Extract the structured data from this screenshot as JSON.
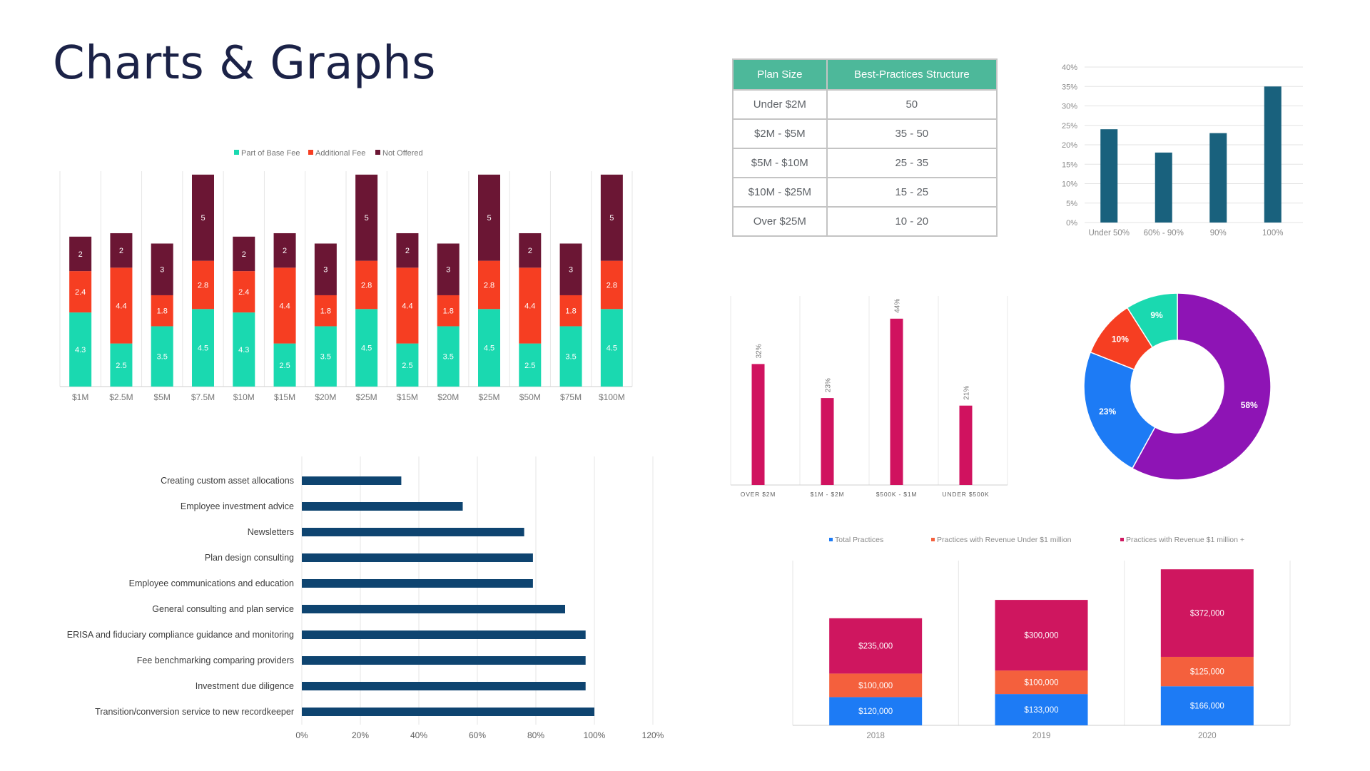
{
  "page": {
    "title": "Charts & Graphs"
  },
  "colors": {
    "title": "#1b2247",
    "base_fee": "#1ad9b0",
    "additional_fee": "#f63e22",
    "not_offered": "#6b1634",
    "table_header": "#4db89a",
    "navy_bar": "#0e4470",
    "teal_bar": "#19617d",
    "pink_bar": "#d0125f",
    "donut": [
      "#8e14b5",
      "#1d7bf5",
      "#f63e22",
      "#1ad9b0"
    ],
    "rev": [
      "#1d7bf5",
      "#f4603d",
      "#cf165f"
    ]
  },
  "table": {
    "headers": [
      "Plan Size",
      "Best-Practices Structure"
    ],
    "rows": [
      [
        "Under $2M",
        "50"
      ],
      [
        "$2M - $5M",
        "35 - 50"
      ],
      [
        "$5M - $10M",
        "25 - 35"
      ],
      [
        "$10M - $25M",
        "15 - 25"
      ],
      [
        "Over $25M",
        "10 - 20"
      ]
    ]
  },
  "chart_data": [
    {
      "id": "fee-stacked",
      "type": "bar",
      "stacked": true,
      "legend_position": "top",
      "categories": [
        "$1M",
        "$2.5M",
        "$5M",
        "$7.5M",
        "$10M",
        "$15M",
        "$20M",
        "$25M",
        "$15M",
        "$20M",
        "$25M",
        "$50M",
        "$75M",
        "$100M"
      ],
      "series": [
        {
          "name": "Part of Base Fee",
          "values": [
            4.3,
            2.5,
            3.5,
            4.5,
            4.3,
            2.5,
            3.5,
            4.5,
            2.5,
            3.5,
            4.5,
            2.5,
            3.5,
            4.5
          ]
        },
        {
          "name": "Additional Fee",
          "values": [
            2.4,
            4.4,
            1.8,
            2.8,
            2.4,
            4.4,
            1.8,
            2.8,
            4.4,
            1.8,
            2.8,
            4.4,
            1.8,
            2.8
          ]
        },
        {
          "name": "Not Offered",
          "values": [
            2,
            2,
            3,
            5,
            2,
            2,
            3,
            5,
            2,
            3,
            5,
            2,
            3,
            5
          ]
        }
      ],
      "ylim": [
        0,
        12.5
      ],
      "grid": "vertical"
    },
    {
      "id": "services-hbar",
      "type": "bar",
      "orientation": "horizontal",
      "categories": [
        "Creating custom asset allocations",
        "Employee investment advice",
        "Newsletters",
        "Plan design consulting",
        "Employee communications and education",
        "General consulting and plan service",
        "ERISA and fiduciary compliance guidance and monitoring",
        "Fee benchmarking comparing providers",
        "Investment due diligence",
        "Transition/conversion service to new recordkeeper"
      ],
      "values": [
        34,
        55,
        76,
        79,
        79,
        90,
        97,
        97,
        97,
        100
      ],
      "xticks": [
        "0%",
        "20%",
        "40%",
        "60%",
        "80%",
        "100%",
        "120%"
      ],
      "xlim": [
        0,
        120
      ],
      "grid": "vertical"
    },
    {
      "id": "percent-columns",
      "type": "bar",
      "categories": [
        "Under 50%",
        "60% - 90%",
        "90%",
        "100%"
      ],
      "values": [
        24,
        18,
        23,
        35
      ],
      "yticks": [
        "0%",
        "5%",
        "10%",
        "15%",
        "20%",
        "25%",
        "30%",
        "35%",
        "40%"
      ],
      "ylim": [
        0,
        40
      ],
      "grid": "horizontal"
    },
    {
      "id": "size-columns",
      "type": "bar",
      "categories": [
        "OVER $2M",
        "$1M - $2M",
        "$500K - $1M",
        "UNDER $500K"
      ],
      "values": [
        32,
        23,
        44,
        21
      ],
      "data_labels": [
        "32%",
        "23%",
        "44%",
        "21%"
      ],
      "ylim": [
        0,
        50
      ],
      "grid": "vertical"
    },
    {
      "id": "share-donut",
      "type": "pie",
      "donut": true,
      "values": [
        58,
        23,
        10,
        9
      ],
      "data_labels": [
        "58%",
        "23%",
        "10%",
        "9%"
      ]
    },
    {
      "id": "revenue-stacked",
      "type": "bar",
      "stacked": true,
      "legend_position": "top",
      "categories": [
        "2018",
        "2019",
        "2020"
      ],
      "series": [
        {
          "name": "Total Practices",
          "values": [
            120000,
            133000,
            166000
          ],
          "labels": [
            "$120,000",
            "$133,000",
            "$166,000"
          ]
        },
        {
          "name": "Practices with Revenue Under $1 million",
          "values": [
            100000,
            100000,
            125000
          ],
          "labels": [
            "$100,000",
            "$100,000",
            "$125,000"
          ]
        },
        {
          "name": "Practices with Revenue  $1 million +",
          "values": [
            235000,
            300000,
            372000
          ],
          "labels": [
            "$235,000",
            "$300,000",
            "$372,000"
          ]
        }
      ],
      "ylim": [
        0,
        700000
      ],
      "grid": "vertical"
    }
  ]
}
